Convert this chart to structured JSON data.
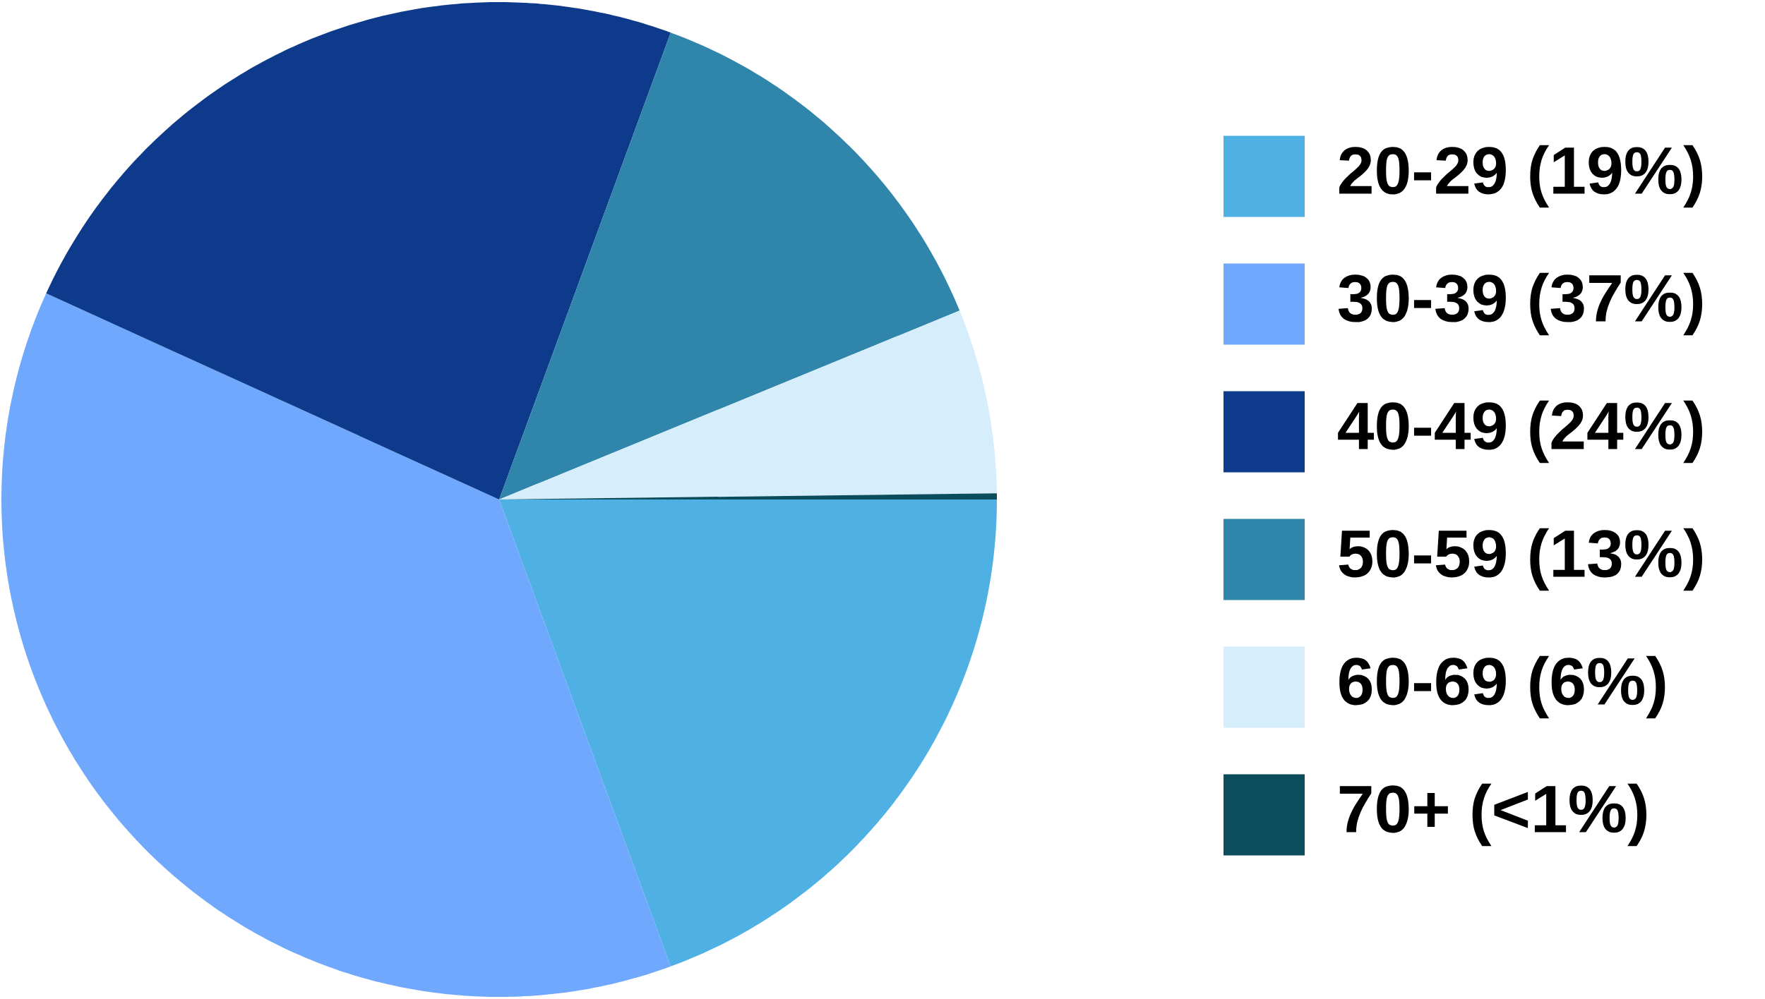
{
  "chart_data": {
    "type": "pie",
    "categories": [
      "20-29 (19%)",
      "30-39 (37%)",
      "40-49 (24%)",
      "50-59 (13%)",
      "60-69 (6%)",
      "70+ (<1%)"
    ],
    "values": [
      19.4,
      37.4,
      23.8,
      13.2,
      6.0,
      0.2
    ],
    "colors": [
      "#4fb1e3",
      "#6fa8fc",
      "#0d3a8b",
      "#2f86aa",
      "#d6edfc",
      "#0b4d5c"
    ],
    "legend": "right"
  }
}
